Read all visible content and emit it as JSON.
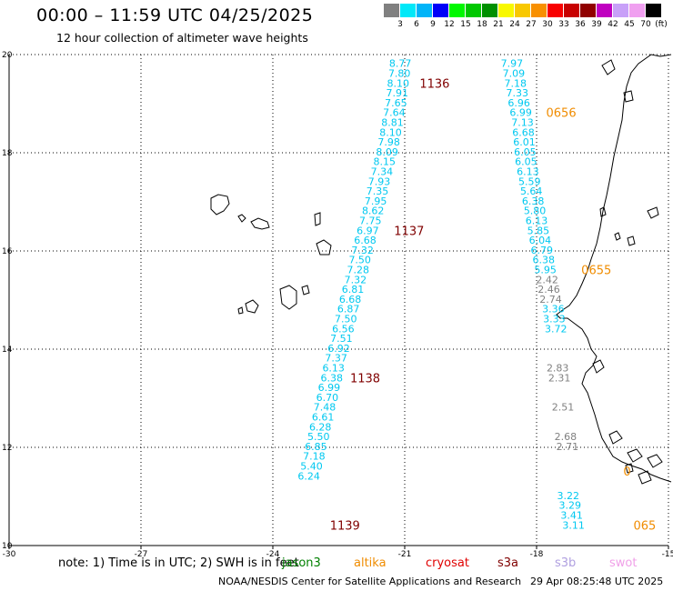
{
  "header": {
    "title": "00:00 – 11:59 UTC 04/25/2025",
    "subtitle": "12 hour collection of altimeter wave heights"
  },
  "colorbar": {
    "unit": "(ft)",
    "colors": [
      "#808080",
      "#00e8f8",
      "#00b4f8",
      "#0000f8",
      "#00f800",
      "#00c800",
      "#009000",
      "#f8f800",
      "#f8c800",
      "#f89000",
      "#f80000",
      "#c80000",
      "#900000",
      "#c000c0",
      "#c8a0f8",
      "#f0a0f0",
      "#000000"
    ],
    "labels": [
      "3",
      "6",
      "9",
      "12",
      "15",
      "18",
      "21",
      "24",
      "27",
      "30",
      "33",
      "36",
      "39",
      "42",
      "45",
      "70"
    ]
  },
  "chart_data": {
    "type": "scatter",
    "title": "00:00 – 11:59 UTC 04/25/2025",
    "subtitle": "12 hour collection of altimeter wave heights",
    "xlim": [
      -30,
      -15
    ],
    "ylim": [
      10,
      20
    ],
    "x_ticks": [
      "-30",
      "-27",
      "-24",
      "-21",
      "-18",
      "-15"
    ],
    "y_ticks": [
      "10",
      "12",
      "14",
      "16",
      "18",
      "20"
    ],
    "grid": true,
    "tracks": [
      {
        "color": "#00c8f0",
        "points": [
          {
            "x": -21.1,
            "y": 19.82,
            "v": "8.77"
          },
          {
            "x": -21.12,
            "y": 19.62,
            "v": "7.80"
          },
          {
            "x": -21.15,
            "y": 19.42,
            "v": "8.10"
          },
          {
            "x": -21.17,
            "y": 19.22,
            "v": "7.91"
          },
          {
            "x": -21.2,
            "y": 19.02,
            "v": "7.65"
          },
          {
            "x": -21.24,
            "y": 18.82,
            "v": "7.64"
          },
          {
            "x": -21.28,
            "y": 18.62,
            "v": "8.81"
          },
          {
            "x": -21.32,
            "y": 18.42,
            "v": "8.10"
          },
          {
            "x": -21.36,
            "y": 18.22,
            "v": "7.98"
          },
          {
            "x": -21.4,
            "y": 18.02,
            "v": "8.09"
          },
          {
            "x": -21.46,
            "y": 17.82,
            "v": "8.15"
          },
          {
            "x": -21.52,
            "y": 17.62,
            "v": "7.34"
          },
          {
            "x": -21.58,
            "y": 17.42,
            "v": "7.93"
          },
          {
            "x": -21.62,
            "y": 17.22,
            "v": "7.35"
          },
          {
            "x": -21.66,
            "y": 17.02,
            "v": "7.95"
          },
          {
            "x": -21.72,
            "y": 16.82,
            "v": "8.62"
          },
          {
            "x": -21.78,
            "y": 16.62,
            "v": "7.75"
          },
          {
            "x": -21.84,
            "y": 16.42,
            "v": "6.97"
          },
          {
            "x": -21.9,
            "y": 16.22,
            "v": "6.68"
          },
          {
            "x": -21.96,
            "y": 16.02,
            "v": "7.32"
          },
          {
            "x": -22.02,
            "y": 15.82,
            "v": "7.50"
          },
          {
            "x": -22.06,
            "y": 15.62,
            "v": "7.28"
          },
          {
            "x": -22.12,
            "y": 15.42,
            "v": "7.32"
          },
          {
            "x": -22.18,
            "y": 15.22,
            "v": "6.81"
          },
          {
            "x": -22.24,
            "y": 15.02,
            "v": "6.68"
          },
          {
            "x": -22.28,
            "y": 14.82,
            "v": "6.87"
          },
          {
            "x": -22.34,
            "y": 14.62,
            "v": "7.50"
          },
          {
            "x": -22.4,
            "y": 14.42,
            "v": "6.56"
          },
          {
            "x": -22.44,
            "y": 14.22,
            "v": "7.51"
          },
          {
            "x": -22.5,
            "y": 14.02,
            "v": "6.92"
          },
          {
            "x": -22.56,
            "y": 13.82,
            "v": "7.37"
          },
          {
            "x": -22.62,
            "y": 13.62,
            "v": "6.13"
          },
          {
            "x": -22.66,
            "y": 13.42,
            "v": "6.38"
          },
          {
            "x": -22.72,
            "y": 13.22,
            "v": "6.99"
          },
          {
            "x": -22.76,
            "y": 13.02,
            "v": "6.70"
          },
          {
            "x": -22.82,
            "y": 12.82,
            "v": "7.48"
          },
          {
            "x": -22.86,
            "y": 12.62,
            "v": "6.61"
          },
          {
            "x": -22.92,
            "y": 12.42,
            "v": "6.28"
          },
          {
            "x": -22.96,
            "y": 12.22,
            "v": "5.50"
          },
          {
            "x": -23.02,
            "y": 12.02,
            "v": "6.85"
          },
          {
            "x": -23.06,
            "y": 11.82,
            "v": "7.18"
          },
          {
            "x": -23.12,
            "y": 11.62,
            "v": "5.40"
          },
          {
            "x": -23.18,
            "y": 11.42,
            "v": "6.24"
          }
        ]
      },
      {
        "color": "#00c8f0",
        "points": [
          {
            "x": -18.56,
            "y": 19.82,
            "v": "7.97"
          },
          {
            "x": -18.52,
            "y": 19.62,
            "v": "7.09"
          },
          {
            "x": -18.48,
            "y": 19.42,
            "v": "7.18"
          },
          {
            "x": -18.44,
            "y": 19.22,
            "v": "7.33"
          },
          {
            "x": -18.4,
            "y": 19.02,
            "v": "6.96"
          },
          {
            "x": -18.36,
            "y": 18.82,
            "v": "6.99"
          },
          {
            "x": -18.32,
            "y": 18.62,
            "v": "7.13"
          },
          {
            "x": -18.3,
            "y": 18.42,
            "v": "6.68"
          },
          {
            "x": -18.28,
            "y": 18.22,
            "v": "6.01"
          },
          {
            "x": -18.26,
            "y": 18.02,
            "v": "6.05"
          },
          {
            "x": -18.24,
            "y": 17.82,
            "v": "6.05"
          },
          {
            "x": -18.2,
            "y": 17.62,
            "v": "6.13"
          },
          {
            "x": -18.16,
            "y": 17.42,
            "v": "5.59"
          },
          {
            "x": -18.12,
            "y": 17.22,
            "v": "5.64"
          },
          {
            "x": -18.08,
            "y": 17.02,
            "v": "6.38"
          },
          {
            "x": -18.04,
            "y": 16.82,
            "v": "5.80"
          },
          {
            "x": -18.0,
            "y": 16.62,
            "v": "6.13"
          },
          {
            "x": -17.96,
            "y": 16.42,
            "v": "5.85"
          },
          {
            "x": -17.92,
            "y": 16.22,
            "v": "6.04"
          },
          {
            "x": -17.88,
            "y": 16.02,
            "v": "6.79"
          },
          {
            "x": -17.84,
            "y": 15.82,
            "v": "6.38"
          },
          {
            "x": -17.8,
            "y": 15.62,
            "v": "5.95"
          }
        ]
      },
      {
        "color": "#808080",
        "points": [
          {
            "x": -17.76,
            "y": 15.42,
            "v": "2.42"
          },
          {
            "x": -17.72,
            "y": 15.22,
            "v": "2.46"
          },
          {
            "x": -17.68,
            "y": 15.02,
            "v": "2.74"
          }
        ]
      },
      {
        "color": "#00c8f0",
        "points": [
          {
            "x": -17.62,
            "y": 14.82,
            "v": "3.36"
          },
          {
            "x": -17.6,
            "y": 14.62,
            "v": "3.33"
          },
          {
            "x": -17.56,
            "y": 14.42,
            "v": "3.72"
          }
        ]
      },
      {
        "color": "#808080",
        "points": [
          {
            "x": -17.52,
            "y": 13.62,
            "v": "2.83"
          },
          {
            "x": -17.48,
            "y": 13.42,
            "v": "2.31"
          },
          {
            "x": -17.4,
            "y": 12.82,
            "v": "2.51"
          },
          {
            "x": -17.34,
            "y": 12.22,
            "v": "2.68"
          },
          {
            "x": -17.3,
            "y": 12.02,
            "v": "2.71"
          }
        ]
      },
      {
        "color": "#00c8f0",
        "points": [
          {
            "x": -17.28,
            "y": 11.02,
            "v": "3.22"
          },
          {
            "x": -17.24,
            "y": 10.82,
            "v": "3.29"
          },
          {
            "x": -17.2,
            "y": 10.62,
            "v": "3.41"
          },
          {
            "x": -17.16,
            "y": 10.42,
            "v": "3.11"
          }
        ]
      }
    ],
    "time_labels": [
      {
        "x": -20.32,
        "y": 19.42,
        "text": "1136",
        "color": "#800000"
      },
      {
        "x": -20.9,
        "y": 16.42,
        "text": "1137",
        "color": "#800000"
      },
      {
        "x": -21.9,
        "y": 13.42,
        "text": "1138",
        "color": "#800000"
      },
      {
        "x": -22.36,
        "y": 10.42,
        "text": "1139",
        "color": "#800000"
      },
      {
        "x": -17.44,
        "y": 18.82,
        "text": "0656",
        "color": "#f08c00"
      },
      {
        "x": -16.64,
        "y": 15.62,
        "text": "0655",
        "color": "#f08c00"
      },
      {
        "x": -15.54,
        "y": 10.42,
        "text": "065",
        "color": "#f08c00"
      },
      {
        "x": -15.94,
        "y": 11.52,
        "text": "0",
        "color": "#f08c00"
      }
    ]
  },
  "note": {
    "text": "note: 1) Time is in UTC; 2) SWH is in feet"
  },
  "satellites": [
    {
      "name": "jason3",
      "color": "#008000"
    },
    {
      "name": "altika",
      "color": "#f08c00"
    },
    {
      "name": "cryosat",
      "color": "#e00000"
    },
    {
      "name": "s3a",
      "color": "#800000"
    },
    {
      "name": "s3b",
      "color": "#b0a0e0"
    },
    {
      "name": "swot",
      "color": "#f0a0e8"
    }
  ],
  "footer": {
    "center": "NOAA/NESDIS Center for Satellite Applications and Research",
    "date": "29 Apr 08:25:48 UTC 2025"
  }
}
